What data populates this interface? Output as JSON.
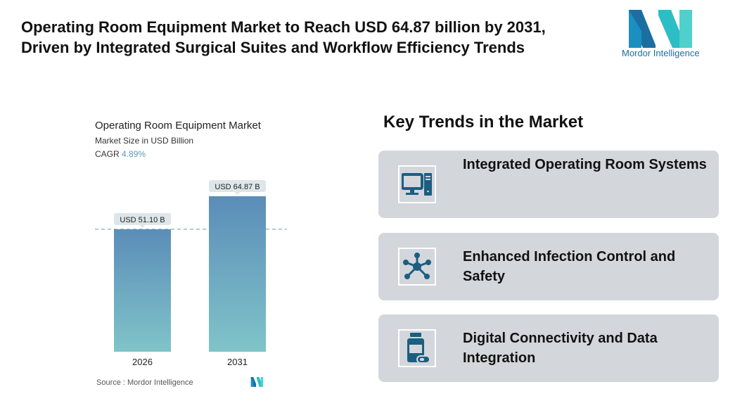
{
  "title": "Operating Room Equipment Market to Reach USD 64.87 billion by 2031, Driven by Integrated Surgical Suites and Workflow Efficiency Trends",
  "logo_text": "Mordor Intelligence",
  "chart_data": {
    "type": "bar",
    "title": "Operating Room Equipment Market",
    "subtitle": "Market Size in USD Billion",
    "cagr_label": "CAGR",
    "cagr_value": "4.89%",
    "categories": [
      "2026",
      "2031"
    ],
    "values": [
      51.1,
      64.87
    ],
    "data_labels": [
      "USD 51.10 B",
      "USD 64.87 B"
    ],
    "ylim": [
      0,
      64.87
    ],
    "grid": false,
    "colors": {
      "bar_top": "#5b8db8",
      "bar_bottom": "#80c4c9",
      "label_bg": "#dde6ea",
      "dash": "#6e97b3",
      "cagr": "#5b9bc0"
    }
  },
  "source": "Source :  Mordor Intelligence",
  "key_trends": {
    "title": "Key Trends in the Market",
    "items": [
      {
        "label": "Integrated Operating Room Systems",
        "icon": "computer-icon"
      },
      {
        "label": "Enhanced Infection Control and Safety",
        "icon": "network-icon"
      },
      {
        "label": "Digital Connectivity and Data Integration",
        "icon": "medicine-bottle-icon"
      }
    ],
    "icon_color": "#1b5e82"
  }
}
